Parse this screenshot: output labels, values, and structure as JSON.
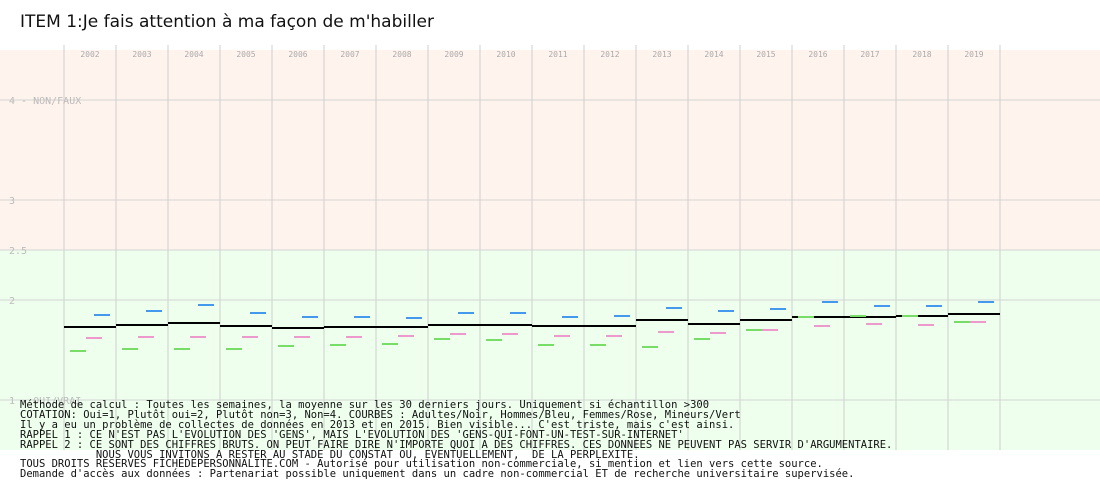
{
  "title": "ITEM 1:Je fais attention à ma façon de m'habiller",
  "chart_data": {
    "type": "line",
    "title": "ITEM 1:Je fais attention à ma façon de m'habiller",
    "x": [
      "2002",
      "2003",
      "2004",
      "2005",
      "2006",
      "2007",
      "2008",
      "2009",
      "2010",
      "2011",
      "2012",
      "2013",
      "2014",
      "2015",
      "2016",
      "2017",
      "2018",
      "2019"
    ],
    "ylim": [
      1,
      4.5
    ],
    "y_ticks": [
      {
        "value": 4,
        "label": "4 - NON/FAUX"
      },
      {
        "value": 3,
        "label": "3"
      },
      {
        "value": 2.5,
        "label": "2.5"
      },
      {
        "value": 2,
        "label": "2"
      },
      {
        "value": 1,
        "label": "1 - OUI/VRAI"
      }
    ],
    "bands": [
      {
        "from": 2.5,
        "to": 4.5,
        "color": "#fff3ee"
      },
      {
        "from": 1,
        "to": 2.5,
        "color": "#eeffee"
      }
    ],
    "series": [
      {
        "name": "Adultes",
        "color": "#000000",
        "values": [
          1.73,
          1.75,
          1.77,
          1.74,
          1.72,
          1.73,
          1.73,
          1.75,
          1.75,
          1.74,
          1.74,
          1.8,
          1.76,
          1.8,
          1.83,
          1.83,
          1.84,
          1.86
        ]
      },
      {
        "name": "Hommes",
        "color": "#4499ee",
        "values": [
          1.85,
          1.89,
          1.95,
          1.87,
          1.83,
          1.83,
          1.82,
          1.87,
          1.87,
          1.83,
          1.84,
          1.92,
          1.89,
          1.91,
          1.98,
          1.94,
          1.94,
          1.98
        ]
      },
      {
        "name": "Femmes",
        "color": "#ee99cc",
        "values": [
          1.62,
          1.63,
          1.63,
          1.63,
          1.63,
          1.63,
          1.64,
          1.66,
          1.66,
          1.64,
          1.64,
          1.68,
          1.67,
          1.7,
          1.74,
          1.76,
          1.75,
          1.78
        ]
      },
      {
        "name": "Mineurs",
        "color": "#77dd66",
        "values": [
          1.49,
          1.51,
          1.51,
          1.51,
          1.54,
          1.55,
          1.56,
          1.61,
          1.6,
          1.55,
          1.55,
          1.53,
          1.61,
          1.7,
          1.83,
          1.84,
          1.84,
          1.78
        ]
      }
    ]
  },
  "notes": [
    "Méthode de calcul : Toutes les semaines, la moyenne sur les 30 derniers jours. Uniquement si échantillon >300",
    "COTATION: Oui=1, Plutôt oui=2, Plutôt non=3, Non=4. COURBES : Adultes/Noir, Hommes/Bleu, Femmes/Rose, Mineurs/Vert",
    "Il y a eu un problème de collectes de données en 2013 et en 2015. Bien visible... C'est triste, mais c'est ainsi.",
    "RAPPEL 1 : CE N'EST PAS L'EVOLUTION DES 'GENS', MAIS L'EVOLUTION DES 'GENS-QUI-FONT-UN-TEST-SUR-INTERNET'",
    "RAPPEL 2 : CE SONT DES CHIFFRES BRUTS. ON PEUT FAIRE DIRE N'IMPORTE QUOI A DES CHIFFRES. CES DONNEES NE PEUVENT PAS SERVIR D'ARGUMENTAIRE.",
    "            NOUS VOUS INVITONS A RESTER AU STADE DU CONSTAT OU, EVENTUELLEMENT,  DE LA PERPLEXITE.",
    "TOUS DROITS RESERVES FICHEDEPERSONNALITE.COM - Autorisé pour utilisation non-commerciale, si mention et lien vers cette source.",
    "Demande d'accès aux données : Partenariat possible uniquement dans un cadre non-commercial ET de recherche universitaire supervisée."
  ]
}
